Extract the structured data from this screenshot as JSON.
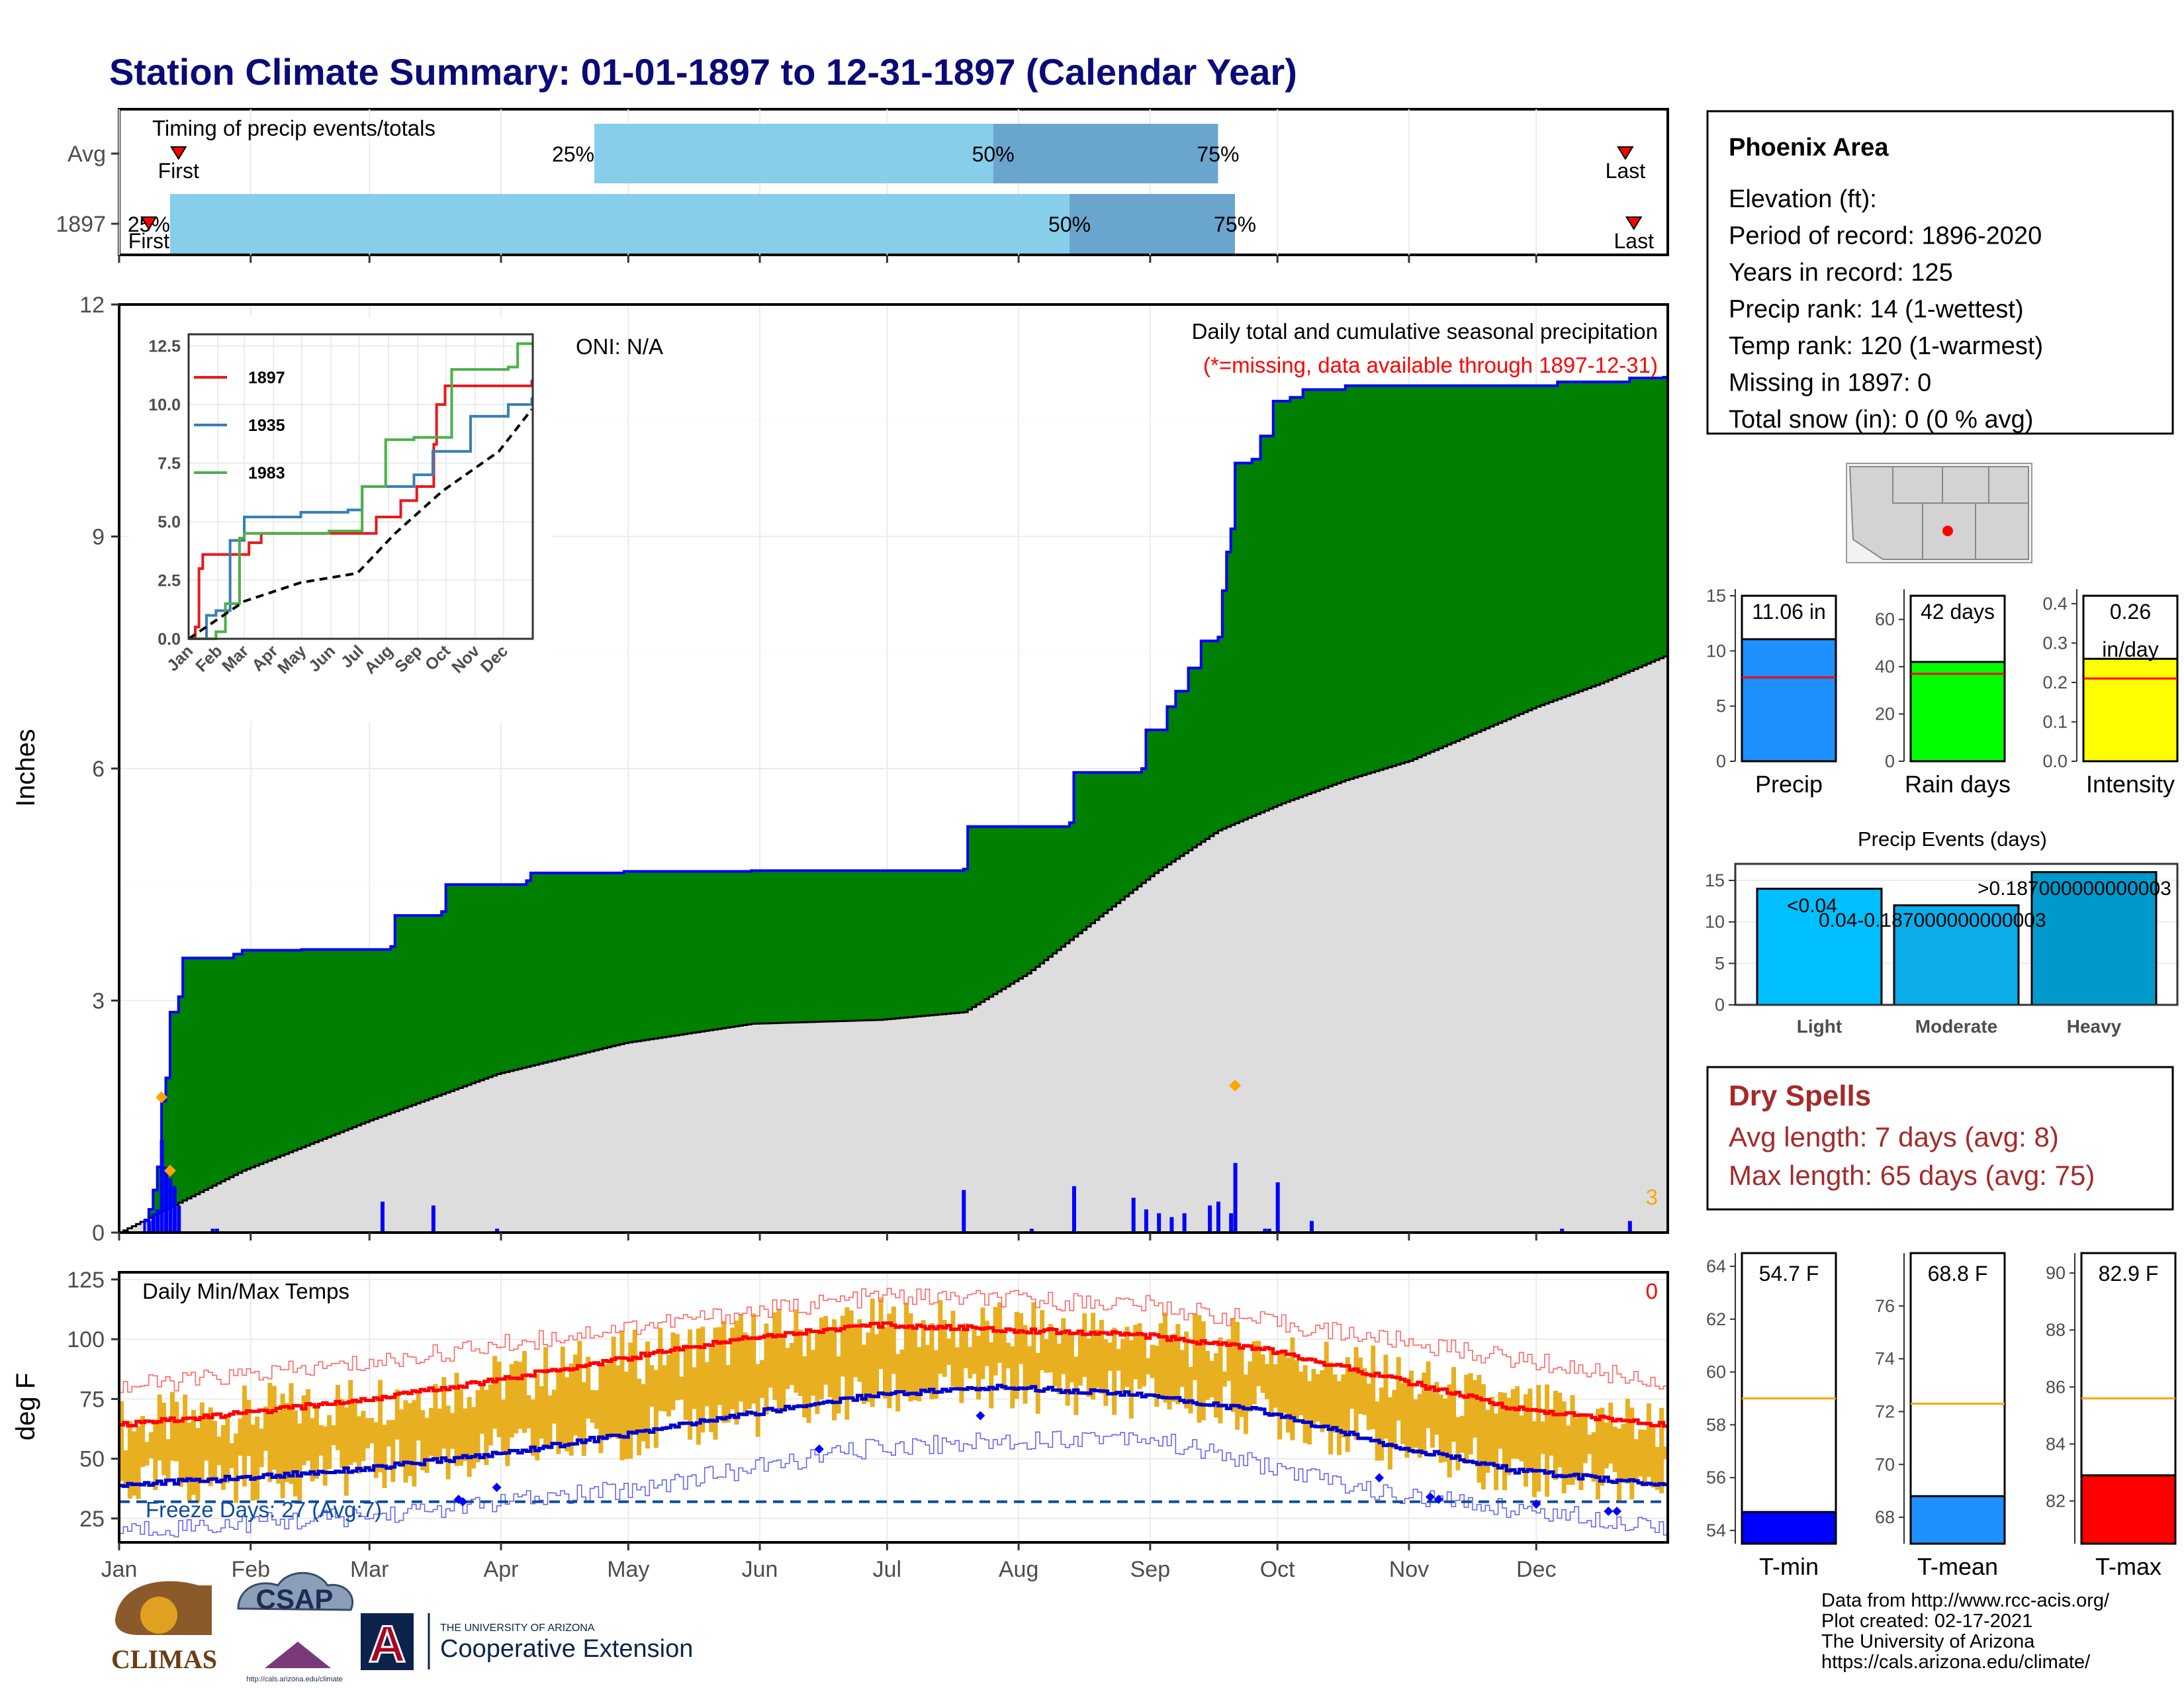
{
  "page": {
    "title": "Station Climate Summary: 01-01-1897 to 12-31-1897 (Calendar Year)"
  },
  "colors": {
    "title": "#0a0a78",
    "precip_cum": "#008000",
    "precip_line": "#0000ff",
    "normal_cum": "#dddddd",
    "daily_bar": "#0000ff",
    "timing_light": "#87ceeb",
    "timing_dark": "#6aa5ce",
    "tmax_line": "#ff0000",
    "tmin_line": "#0000cc",
    "temp_band": "#e8b020",
    "dry_spell_text": "#a52a2a",
    "marker": "#ffa500"
  },
  "months": [
    "Jan",
    "Feb",
    "Mar",
    "Apr",
    "May",
    "Jun",
    "Jul",
    "Aug",
    "Sep",
    "Oct",
    "Nov",
    "Dec"
  ],
  "timing": {
    "header": "Timing of precip events/totals",
    "rows": [
      {
        "label": "Avg",
        "p25_doy": 113,
        "p50_doy": 207,
        "p75_doy": 260,
        "first_doy": 15,
        "last_doy": 356,
        "p25_label": "25%",
        "p50_label": "50%",
        "p75_label": "75%",
        "first_label": "First",
        "last_label": "Last"
      },
      {
        "label": "1897",
        "p25_doy": 13,
        "p50_doy": 225,
        "p75_doy": 264,
        "first_doy": 8,
        "last_doy": 358,
        "p25_label": "25%",
        "p50_label": "50%",
        "p75_label": "75%",
        "first_label": "First",
        "last_label": "Last"
      }
    ]
  },
  "precip_panel": {
    "ylabel": "Inches",
    "oni": "ONI: N/A",
    "note1": "Daily total and cumulative seasonal precipitation",
    "note2": "(*=missing, data available through 1897-12-31)",
    "missing_count": "3",
    "yticks": [
      "0",
      "3",
      "6",
      "9",
      "12"
    ]
  },
  "inset": {
    "series": [
      {
        "name": "1897"
      },
      {
        "name": "1935"
      },
      {
        "name": "1983"
      }
    ],
    "yticks": [
      "0.0",
      "2.5",
      "5.0",
      "7.5",
      "10.0",
      "12.5"
    ]
  },
  "temp_panel": {
    "ylabel": "deg F",
    "title": "Daily Min/Max Temps",
    "count": "0",
    "freeze": "Freeze Days: 27 (Avg:7)",
    "yticks": [
      "25",
      "50",
      "75",
      "100",
      "125"
    ]
  },
  "station": {
    "name": "Phoenix Area",
    "lines": [
      "Elevation (ft):",
      "Period of record: 1896-2020",
      "Years in record: 125",
      "Precip rank: 14 (1-wettest)",
      "Temp rank: 120 (1-warmest)",
      "Missing in 1897: 0",
      "Total snow (in): 0 (0 % avg)"
    ]
  },
  "summary_bars": [
    {
      "label": "Precip",
      "value": 11.06,
      "display": "11.06 in",
      "avg": 7.6,
      "ymax": 15,
      "ticks": [
        "0",
        "5",
        "10",
        "15"
      ],
      "color": "#1e90ff"
    },
    {
      "label": "Rain days",
      "value": 42,
      "display": "42 days",
      "avg": 37,
      "ymax": 70,
      "ticks": [
        "0",
        "20",
        "40",
        "60"
      ],
      "color": "#00ff00"
    },
    {
      "label": "Intensity",
      "value": 0.26,
      "display": "0.26",
      "display2": "in/day",
      "avg": 0.21,
      "ymax": 0.42,
      "ticks": [
        "0.0",
        "0.1",
        "0.2",
        "0.3",
        "0.4"
      ],
      "color": "#ffff00"
    }
  ],
  "events": {
    "title": "Precip Events (days)",
    "yticks": [
      "0",
      "5",
      "10",
      "15"
    ],
    "bars": [
      {
        "label": "Light",
        "value": 14,
        "cat": "<0.04",
        "color": "#00bfff"
      },
      {
        "label": "Moderate",
        "value": 12,
        "cat": "0.04-0.187000000000003",
        "color": "#0aacea"
      },
      {
        "label": "Heavy",
        "value": 16,
        "cat": ">0.187000000000003",
        "color": "#0099cc"
      }
    ]
  },
  "dry_spells": {
    "title": "Dry Spells",
    "avg": "Avg length: 7 days (avg: 8)",
    "max": "Max length: 65 days (avg: 75)"
  },
  "temp_bars": [
    {
      "label": "T-min",
      "value": 54.7,
      "display": "54.7 F",
      "avg": 59.0,
      "ymin": 53.5,
      "ymax": 64.5,
      "ticks": [
        54,
        56,
        58,
        60,
        62,
        64
      ],
      "color": "#0000ff"
    },
    {
      "label": "T-mean",
      "value": 68.8,
      "display": "68.8 F",
      "avg": 72.3,
      "ymin": 67,
      "ymax": 78,
      "ticks": [
        68,
        70,
        72,
        74,
        76
      ],
      "color": "#1e90ff"
    },
    {
      "label": "T-max",
      "value": 82.9,
      "display": "82.9 F",
      "avg": 85.6,
      "ymin": 80.5,
      "ymax": 90.7,
      "ticks": [
        82,
        84,
        86,
        88,
        90
      ],
      "color": "#ff0000"
    }
  ],
  "footer": {
    "lines": [
      "Data from http://www.rcc-acis.org/",
      "Plot created: 02-17-2021",
      "The University of Arizona",
      "https://cals.arizona.edu/climate/"
    ],
    "logo1": "CLIMAS",
    "logo2": "CSAP",
    "logo2_url": "http://cals.arizona.edu/climate",
    "ua_small": "THE UNIVERSITY OF ARIZONA",
    "ua_big": "Cooperative Extension",
    "ua_letter": "A"
  },
  "chart_data": [
    {
      "type": "area",
      "title": "Daily total and cumulative seasonal precipitation",
      "ylabel": "Inches",
      "ylim": [
        0,
        12
      ],
      "xlim_doy": [
        1,
        365
      ],
      "cumulative_1897": [
        [
          1,
          0
        ],
        [
          7,
          0.15
        ],
        [
          8,
          0.3
        ],
        [
          9,
          0.55
        ],
        [
          10,
          0.85
        ],
        [
          11,
          1.7
        ],
        [
          12,
          2.0
        ],
        [
          13,
          2.85
        ],
        [
          15,
          3.05
        ],
        [
          16,
          3.55
        ],
        [
          28,
          3.6
        ],
        [
          30,
          3.65
        ],
        [
          44,
          3.66
        ],
        [
          65,
          3.7
        ],
        [
          66,
          4.1
        ],
        [
          77,
          4.15
        ],
        [
          78,
          4.5
        ],
        [
          97,
          4.55
        ],
        [
          98,
          4.65
        ],
        [
          120,
          4.67
        ],
        [
          150,
          4.68
        ],
        [
          200,
          4.7
        ],
        [
          201,
          5.25
        ],
        [
          225,
          5.3
        ],
        [
          226,
          5.95
        ],
        [
          242,
          6.0
        ],
        [
          243,
          6.5
        ],
        [
          248,
          6.8
        ],
        [
          250,
          7.0
        ],
        [
          253,
          7.3
        ],
        [
          256,
          7.65
        ],
        [
          260,
          7.7
        ],
        [
          261,
          8.3
        ],
        [
          262,
          8.8
        ],
        [
          263,
          9.1
        ],
        [
          264,
          9.95
        ],
        [
          268,
          10.0
        ],
        [
          270,
          10.3
        ],
        [
          273,
          10.75
        ],
        [
          277,
          10.8
        ],
        [
          280,
          10.9
        ],
        [
          290,
          10.95
        ],
        [
          340,
          11.0
        ],
        [
          357,
          11.05
        ],
        [
          365,
          11.06
        ]
      ],
      "normal_cumulative": [
        [
          1,
          0
        ],
        [
          30,
          0.8
        ],
        [
          60,
          1.45
        ],
        [
          90,
          2.05
        ],
        [
          120,
          2.45
        ],
        [
          150,
          2.7
        ],
        [
          180,
          2.75
        ],
        [
          200,
          2.85
        ],
        [
          215,
          3.35
        ],
        [
          230,
          4.0
        ],
        [
          245,
          4.65
        ],
        [
          260,
          5.2
        ],
        [
          275,
          5.55
        ],
        [
          290,
          5.85
        ],
        [
          305,
          6.1
        ],
        [
          320,
          6.45
        ],
        [
          335,
          6.8
        ],
        [
          350,
          7.1
        ],
        [
          365,
          7.45
        ]
      ],
      "daily": [
        [
          8,
          0.15
        ],
        [
          9,
          0.25
        ],
        [
          10,
          0.3
        ],
        [
          11,
          1.2
        ],
        [
          12,
          0.85
        ],
        [
          13,
          0.7
        ],
        [
          14,
          0.6
        ],
        [
          15,
          0.35
        ],
        [
          23,
          0.05
        ],
        [
          24,
          0.05
        ],
        [
          63,
          0.4
        ],
        [
          75,
          0.35
        ],
        [
          90,
          0.05
        ],
        [
          200,
          0.55
        ],
        [
          216,
          0.05
        ],
        [
          226,
          0.6
        ],
        [
          240,
          0.45
        ],
        [
          243,
          0.3
        ],
        [
          246,
          0.25
        ],
        [
          249,
          0.2
        ],
        [
          252,
          0.25
        ],
        [
          258,
          0.35
        ],
        [
          260,
          0.4
        ],
        [
          263,
          0.25
        ],
        [
          264,
          0.9
        ],
        [
          271,
          0.05
        ],
        [
          272,
          0.05
        ],
        [
          274,
          0.65
        ],
        [
          282,
          0.15
        ],
        [
          341,
          0.05
        ],
        [
          357,
          0.15
        ]
      ],
      "missing_markers_doy": [
        [
          11,
          1.75
        ],
        [
          13,
          0.8
        ],
        [
          264,
          1.9
        ]
      ]
    },
    {
      "type": "line",
      "title": "Daily Min/Max Temps",
      "ylabel": "deg F",
      "ylim": [
        15,
        128
      ],
      "freeze_line": 32,
      "tmax_normal": [
        [
          1,
          64
        ],
        [
          30,
          69
        ],
        [
          60,
          75
        ],
        [
          90,
          83
        ],
        [
          120,
          92
        ],
        [
          150,
          101
        ],
        [
          180,
          106
        ],
        [
          210,
          104
        ],
        [
          240,
          102
        ],
        [
          270,
          96
        ],
        [
          300,
          84
        ],
        [
          330,
          71
        ],
        [
          365,
          64
        ]
      ],
      "tmin_normal": [
        [
          1,
          39
        ],
        [
          30,
          42
        ],
        [
          60,
          46
        ],
        [
          90,
          52
        ],
        [
          120,
          60
        ],
        [
          150,
          69
        ],
        [
          180,
          77
        ],
        [
          210,
          80
        ],
        [
          240,
          77
        ],
        [
          270,
          70
        ],
        [
          300,
          56
        ],
        [
          330,
          45
        ],
        [
          365,
          39
        ]
      ],
      "record_high": [
        [
          1,
          80
        ],
        [
          60,
          90
        ],
        [
          120,
          105
        ],
        [
          180,
          118
        ],
        [
          240,
          115
        ],
        [
          300,
          100
        ],
        [
          365,
          82
        ]
      ],
      "record_low": [
        [
          1,
          20
        ],
        [
          60,
          26
        ],
        [
          120,
          37
        ],
        [
          180,
          55
        ],
        [
          240,
          60
        ],
        [
          300,
          35
        ],
        [
          365,
          22
        ]
      ],
      "low_markers": [
        [
          81,
          33
        ],
        [
          82,
          32
        ],
        [
          90,
          38
        ],
        [
          166,
          54
        ],
        [
          204,
          68
        ],
        [
          298,
          42
        ],
        [
          310,
          34
        ],
        [
          312,
          33
        ],
        [
          335,
          31
        ],
        [
          352,
          28
        ],
        [
          354,
          28
        ]
      ]
    },
    {
      "type": "line",
      "title": "",
      "series": [
        {
          "name": "1897",
          "values": [
            [
              1,
              0
            ],
            [
              8,
              0.5
            ],
            [
              12,
              3.0
            ],
            [
              16,
              3.6
            ],
            [
              65,
              4.1
            ],
            [
              78,
              4.5
            ],
            [
              200,
              5.2
            ],
            [
              226,
              5.9
            ],
            [
              243,
              6.5
            ],
            [
              261,
              8.3
            ],
            [
              264,
              10.0
            ],
            [
              273,
              10.8
            ],
            [
              365,
              11.06
            ]
          ]
        },
        {
          "name": "1935",
          "values": [
            [
              1,
              0
            ],
            [
              20,
              1.0
            ],
            [
              30,
              1.2
            ],
            [
              45,
              4.2
            ],
            [
              60,
              5.2
            ],
            [
              120,
              5.4
            ],
            [
              170,
              5.5
            ],
            [
              185,
              6.5
            ],
            [
              240,
              7.0
            ],
            [
              260,
              8.0
            ],
            [
              300,
              9.5
            ],
            [
              340,
              10.0
            ],
            [
              365,
              10.3
            ]
          ]
        },
        {
          "name": "1983",
          "values": [
            [
              1,
              0
            ],
            [
              30,
              0.3
            ],
            [
              40,
              1.5
            ],
            [
              55,
              4.3
            ],
            [
              60,
              4.5
            ],
            [
              150,
              4.6
            ],
            [
              185,
              6.5
            ],
            [
              210,
              8.5
            ],
            [
              240,
              8.6
            ],
            [
              280,
              11.5
            ],
            [
              340,
              11.6
            ],
            [
              350,
              12.6
            ],
            [
              365,
              12.6
            ]
          ]
        },
        {
          "name": "",
          "values": [
            [
              1,
              0
            ],
            [
              60,
              1.6
            ],
            [
              120,
              2.4
            ],
            [
              180,
              2.8
            ],
            [
              220,
              4.5
            ],
            [
              270,
              6.3
            ],
            [
              330,
              8.0
            ],
            [
              365,
              9.8
            ]
          ]
        }
      ],
      "ylim": [
        0,
        13
      ],
      "yticks": [
        0,
        2.5,
        5,
        7.5,
        10,
        12.5
      ]
    },
    {
      "type": "bar",
      "title": "Precip Events (days)",
      "categories": [
        "Light",
        "Moderate",
        "Heavy"
      ],
      "values": [
        14,
        12,
        16
      ]
    }
  ]
}
